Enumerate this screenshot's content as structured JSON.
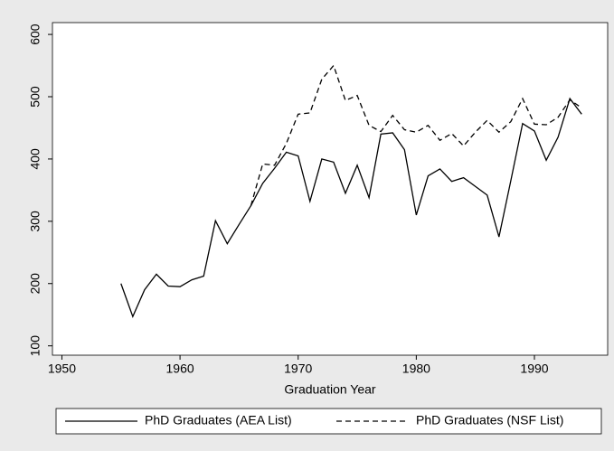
{
  "chart_data": {
    "type": "line",
    "x_label": "Graduation Year",
    "x": [
      1955,
      1956,
      1957,
      1958,
      1959,
      1960,
      1961,
      1962,
      1963,
      1964,
      1965,
      1966,
      1967,
      1968,
      1969,
      1970,
      1971,
      1972,
      1973,
      1974,
      1975,
      1976,
      1977,
      1978,
      1979,
      1980,
      1981,
      1982,
      1983,
      1984,
      1985,
      1986,
      1987,
      1988,
      1989,
      1990,
      1991,
      1992,
      1993,
      1994
    ],
    "series": [
      {
        "name": "PhD Graduates (AEA List)",
        "color": "#000000",
        "style": "solid",
        "values": [
          200,
          147,
          190,
          215,
          196,
          195,
          206,
          212,
          301,
          264,
          295,
          325,
          361,
          385,
          411,
          405,
          332,
          400,
          395,
          345,
          390,
          338,
          440,
          442,
          415,
          310,
          373,
          384,
          364,
          370,
          356,
          342,
          275,
          365,
          457,
          445,
          398,
          435,
          497,
          472
        ]
      },
      {
        "name": "PhD Graduates (NSF List)",
        "color": "#000000",
        "style": "dashed",
        "values": [
          null,
          null,
          null,
          null,
          null,
          null,
          null,
          null,
          null,
          null,
          null,
          325,
          392,
          390,
          425,
          472,
          474,
          528,
          550,
          494,
          502,
          454,
          444,
          470,
          447,
          443,
          454,
          430,
          441,
          421,
          443,
          462,
          443,
          460,
          497,
          456,
          455,
          467,
          495,
          482
        ]
      }
    ],
    "xlim": [
      1949.2,
      1996.2
    ],
    "xticks": [
      1950,
      1960,
      1970,
      1980,
      1990
    ],
    "ylim": [
      85,
      619
    ],
    "yticks": [
      100,
      200,
      300,
      400,
      500,
      600
    ],
    "legend": "bottom"
  }
}
